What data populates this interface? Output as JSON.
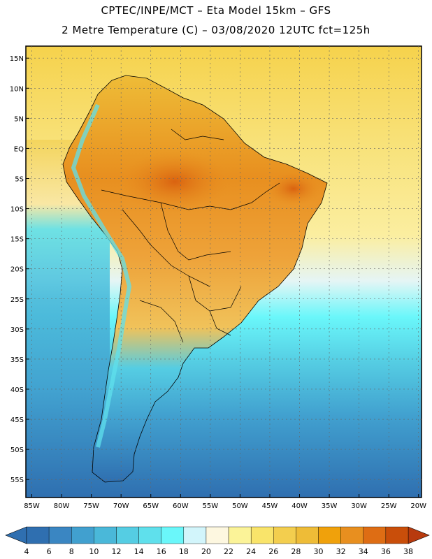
{
  "title_line1": "CPTEC/INPE/MCT –  Eta Model 15km – GFS",
  "title_line2": "2 Metre Temperature (C) – 03/08/2020 12UTC fct=125h",
  "lat_ticks": [
    {
      "lat": 15,
      "label": "15N"
    },
    {
      "lat": 10,
      "label": "10N"
    },
    {
      "lat": 5,
      "label": "5N"
    },
    {
      "lat": 0,
      "label": "EQ"
    },
    {
      "lat": -5,
      "label": "5S"
    },
    {
      "lat": -10,
      "label": "10S"
    },
    {
      "lat": -15,
      "label": "15S"
    },
    {
      "lat": -20,
      "label": "20S"
    },
    {
      "lat": -25,
      "label": "25S"
    },
    {
      "lat": -30,
      "label": "30S"
    },
    {
      "lat": -35,
      "label": "35S"
    },
    {
      "lat": -40,
      "label": "40S"
    },
    {
      "lat": -45,
      "label": "45S"
    },
    {
      "lat": -50,
      "label": "50S"
    },
    {
      "lat": -55,
      "label": "55S"
    }
  ],
  "lon_ticks": [
    {
      "lon": -85,
      "label": "85W"
    },
    {
      "lon": -80,
      "label": "80W"
    },
    {
      "lon": -75,
      "label": "75W"
    },
    {
      "lon": -70,
      "label": "70W"
    },
    {
      "lon": -65,
      "label": "65W"
    },
    {
      "lon": -60,
      "label": "60W"
    },
    {
      "lon": -55,
      "label": "55W"
    },
    {
      "lon": -50,
      "label": "50W"
    },
    {
      "lon": -45,
      "label": "45W"
    },
    {
      "lon": -40,
      "label": "40W"
    },
    {
      "lon": -35,
      "label": "35W"
    },
    {
      "lon": -30,
      "label": "30W"
    },
    {
      "lon": -25,
      "label": "25W"
    },
    {
      "lon": -20,
      "label": "20W"
    }
  ],
  "extent": {
    "lon_min": -86,
    "lon_max": -19.5,
    "lat_min": -58,
    "lat_max": 17
  },
  "colorbar": {
    "labels": [
      "4",
      "6",
      "8",
      "10",
      "12",
      "14",
      "16",
      "18",
      "20",
      "22",
      "24",
      "26",
      "28",
      "30",
      "32",
      "34",
      "36",
      "38"
    ],
    "low_arrow_color": "#2f6fb0",
    "high_arrow_color": "#b83a0e",
    "colors": [
      "#2f6fb0",
      "#3a86c2",
      "#41a0cf",
      "#4ab8d9",
      "#55cde3",
      "#5fe0ec",
      "#6af7fa",
      "#d2f5fb",
      "#fdf7e0",
      "#fbf398",
      "#f9e46a",
      "#f3ce4e",
      "#eebc37",
      "#f0a10b",
      "#e88f1f",
      "#de6d14",
      "#c94e0a"
    ]
  },
  "colors": {
    "ocean_warm": "#f7e27a",
    "ocean_cool": "#5fe0ec",
    "ocean_cold": "#2f6fb0",
    "land_hot": "#de6d14"
  }
}
